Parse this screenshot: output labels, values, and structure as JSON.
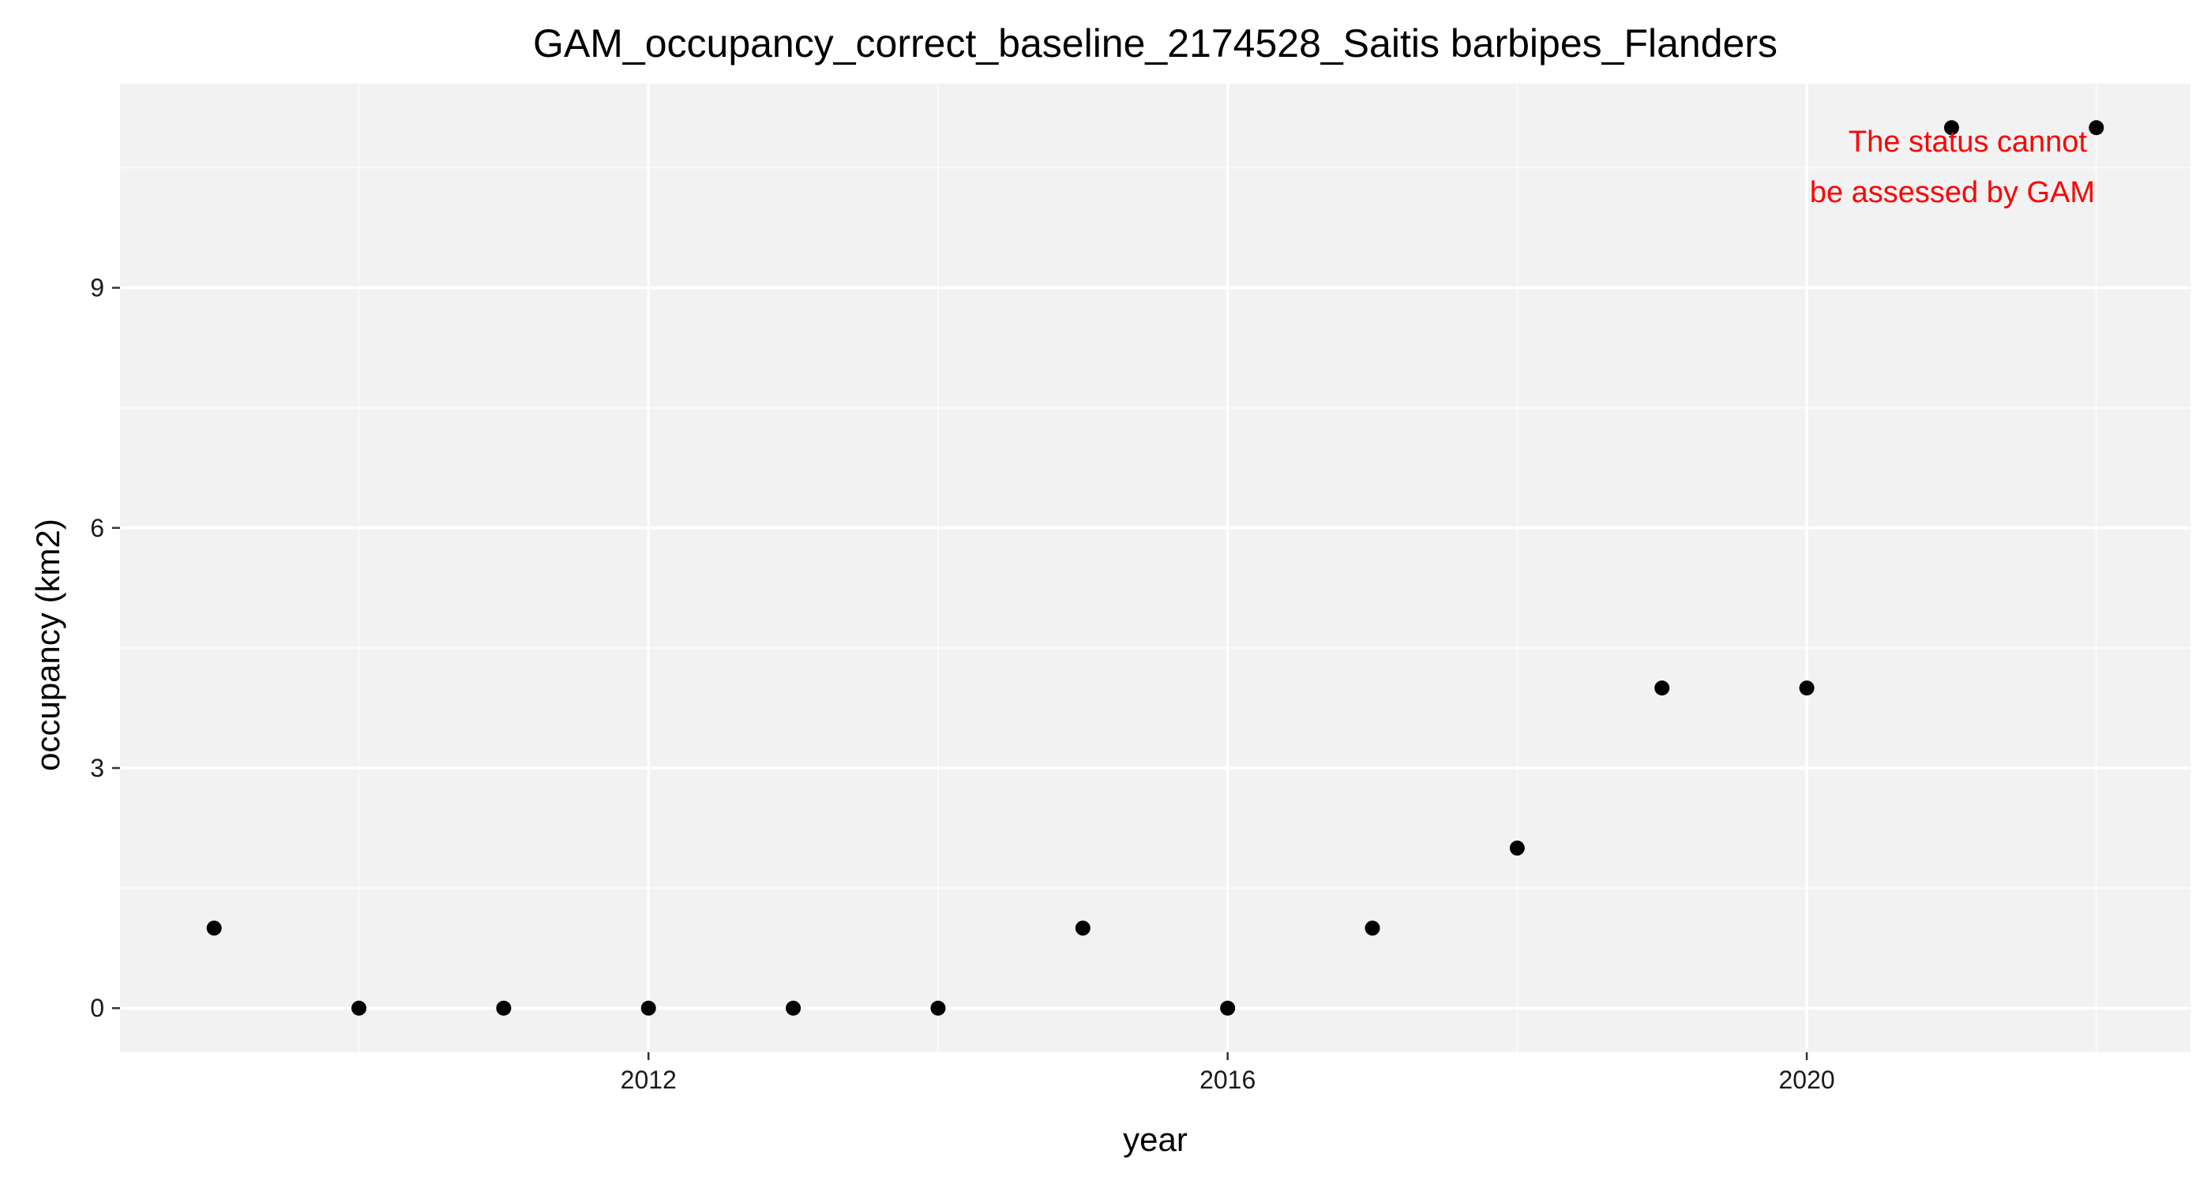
{
  "chart_data": {
    "type": "scatter",
    "title": "GAM_occupancy_correct_baseline_2174528_Saitis barbipes_Flanders",
    "xlabel": "year",
    "ylabel": "occupancy (km2)",
    "x_ticks": [
      2012,
      2016,
      2020
    ],
    "y_ticks": [
      0,
      3,
      6,
      9
    ],
    "xlim": [
      2008.35,
      2022.65
    ],
    "ylim": [
      -0.55,
      11.55
    ],
    "grid": true,
    "x": [
      2009,
      2010,
      2011,
      2012,
      2013,
      2014,
      2015,
      2016,
      2017,
      2018,
      2019,
      2020,
      2021,
      2022
    ],
    "y": [
      1,
      0,
      0,
      0,
      0,
      0,
      1,
      0,
      1,
      2,
      4,
      4,
      11,
      11
    ],
    "annotation": {
      "lines": [
        "The status cannot",
        "be assessed by GAM"
      ],
      "position": "top-right",
      "color": "#ff0000"
    },
    "colors": {
      "panel_background": "#f2f2f2",
      "grid_major": "#ffffff",
      "grid_minor": "#fafafa",
      "points": "#000000",
      "annotation": "#ff0000"
    }
  }
}
